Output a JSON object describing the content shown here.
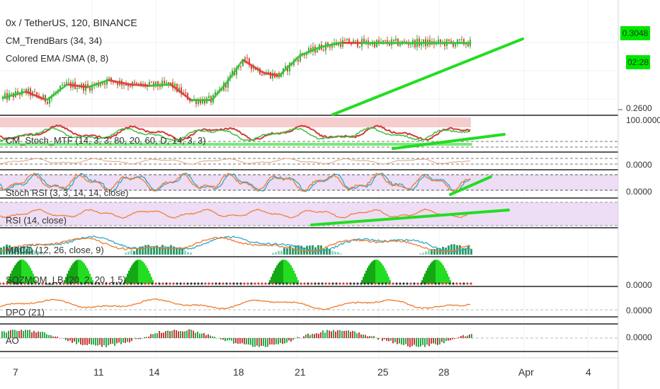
{
  "header": {
    "symbol_line": "0x / TetherUS, 120, BINANCE",
    "indicator_1": "CM_TrendBars (34, 34)",
    "indicator_2": "Colored EMA /SMA (8, 8)"
  },
  "price_scale": {
    "last_price": "0.3048",
    "countdown": "02:28",
    "ticks": [
      "0.2600"
    ]
  },
  "panels": [
    {
      "label": "CM_Stoch_MTF (14, 3, 3, 80, 20, 60, D, 14, 3, 3)",
      "scale": "100.0000",
      "scale2": "0.0000"
    },
    {
      "label": "Stoch RSI (3, 3, 14, 14, close)",
      "scale": "0.0000"
    },
    {
      "label": "RSI (14, close)",
      "scale": ""
    },
    {
      "label": "MACD (12, 26, close, 9)",
      "scale": ""
    },
    {
      "label": "SQZMOM_LB (20, 2, 20, 1.5)",
      "scale": "0.0000"
    },
    {
      "label": "DPO (21)",
      "scale": "0.0000"
    },
    {
      "label": "AO",
      "scale": "0.0000"
    }
  ],
  "x_axis": {
    "labels": [
      "7",
      "11",
      "14",
      "18",
      "21",
      "25",
      "28",
      "Apr",
      "4"
    ]
  },
  "colors": {
    "up": "#3fae3f",
    "down": "#e0443a",
    "trendline": "#22dd22",
    "rsi_band": "#e9d5f2",
    "stoch_band": "#f2b8b8",
    "macd_line": "#2fa6c8",
    "signal_line": "#f07a2a",
    "histo_up": "#2f9e6e",
    "sqz_green": "#22dd22",
    "ao_green": "#2ea84a",
    "ao_red": "#c83a3a"
  },
  "chart_data": {
    "type": "candlestick",
    "title": "0x / TetherUS, 120, BINANCE",
    "x_tick_labels": [
      "7",
      "11",
      "14",
      "18",
      "21",
      "25",
      "28",
      "Apr",
      "4"
    ],
    "y_ticks": [
      "0.2600"
    ],
    "last_value": 0.3048,
    "price_path": [
      [
        0,
        0.266
      ],
      [
        5,
        0.271
      ],
      [
        9,
        0.265
      ],
      [
        13,
        0.276
      ],
      [
        17,
        0.274
      ],
      [
        21,
        0.279
      ],
      [
        25,
        0.276
      ],
      [
        29,
        0.275
      ],
      [
        33,
        0.276
      ],
      [
        37,
        0.265
      ],
      [
        41,
        0.265
      ],
      [
        44,
        0.278
      ],
      [
        47,
        0.293
      ],
      [
        51,
        0.284
      ],
      [
        54,
        0.282
      ],
      [
        58,
        0.296
      ],
      [
        62,
        0.302
      ],
      [
        66,
        0.305
      ],
      [
        70,
        0.3048
      ]
    ],
    "x_range": [
      0,
      100
    ],
    "y_range": [
      0.255,
      0.315
    ],
    "grid": true
  }
}
